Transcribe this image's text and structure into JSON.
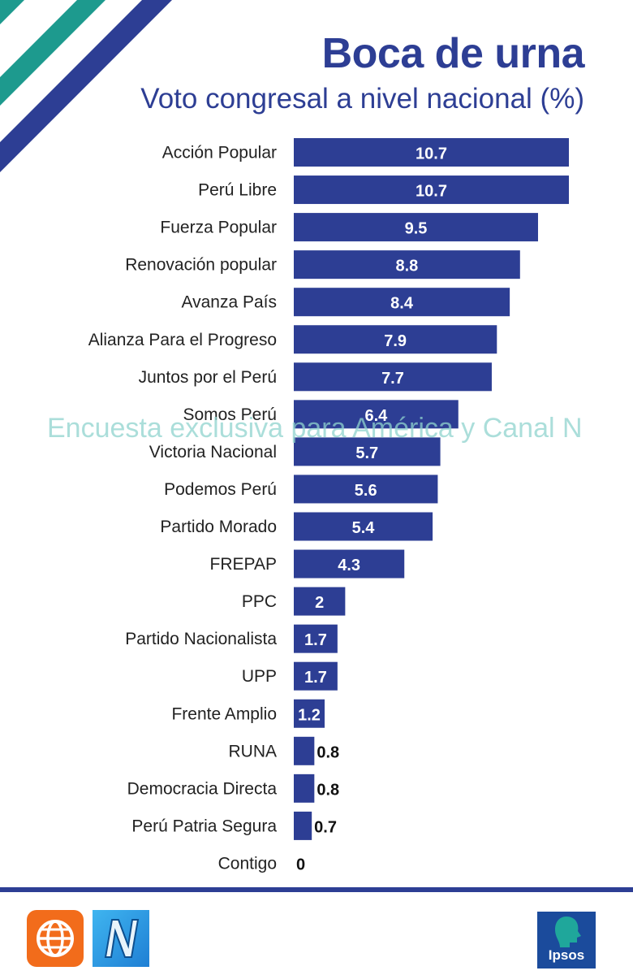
{
  "title": "Boca de urna",
  "subtitle": "Voto congresal a nivel nacional (%)",
  "watermark": "Encuesta exclusiva para América y Canal N",
  "logos": {
    "america": "america-tv-logo",
    "canal_n": "canal-n-logo",
    "ipsos_text": "Ipsos"
  },
  "colors": {
    "bar": "#2d3e94",
    "stripe_teal": "#1d9a8e",
    "stripe_blue": "#2d3e94"
  },
  "chart_data": {
    "type": "bar",
    "orientation": "horizontal",
    "title": "Boca de urna",
    "subtitle": "Voto congresal a nivel nacional (%)",
    "xlabel": "",
    "ylabel": "",
    "xlim": [
      0,
      10.7
    ],
    "grid": false,
    "legend": "none",
    "categories": [
      "Acción Popular",
      "Perú Libre",
      "Fuerza Popular",
      "Renovación popular",
      "Avanza País",
      "Alianza Para el Progreso",
      "Juntos por el Perú",
      "Somos Perú",
      "Victoria Nacional",
      "Podemos Perú",
      "Partido Morado",
      "FREPAP",
      "PPC",
      "Partido Nacionalista",
      "UPP",
      "Frente Amplio",
      "RUNA",
      "Democracia Directa",
      "Perú Patria Segura",
      "Contigo"
    ],
    "values": [
      10.7,
      10.7,
      9.5,
      8.8,
      8.4,
      7.9,
      7.7,
      6.4,
      5.7,
      5.6,
      5.4,
      4.3,
      2,
      1.7,
      1.7,
      1.2,
      0.8,
      0.8,
      0.7,
      0
    ],
    "value_labels": [
      "10.7",
      "10.7",
      "9.5",
      "8.8",
      "8.4",
      "7.9",
      "7.7",
      "6.4",
      "5.7",
      "5.6",
      "5.4",
      "4.3",
      "2",
      "1.7",
      "1.7",
      "1.2",
      "0.8",
      "0.8",
      "0.7",
      "0"
    ]
  }
}
